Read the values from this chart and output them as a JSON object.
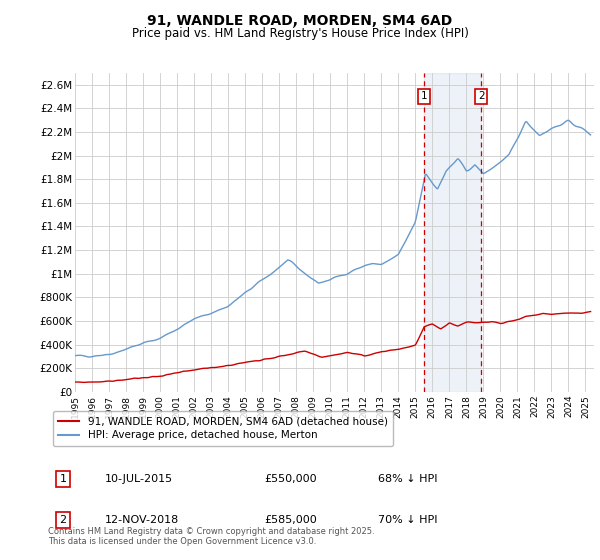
{
  "title": "91, WANDLE ROAD, MORDEN, SM4 6AD",
  "subtitle": "Price paid vs. HM Land Registry's House Price Index (HPI)",
  "ylabel_ticks": [
    "£0",
    "£200K",
    "£400K",
    "£600K",
    "£800K",
    "£1M",
    "£1.2M",
    "£1.4M",
    "£1.6M",
    "£1.8M",
    "£2M",
    "£2.2M",
    "£2.4M",
    "£2.6M"
  ],
  "ytick_values": [
    0,
    200000,
    400000,
    600000,
    800000,
    1000000,
    1200000,
    1400000,
    1600000,
    1800000,
    2000000,
    2200000,
    2400000,
    2600000
  ],
  "ylim": [
    0,
    2700000
  ],
  "xlim_start": 1995,
  "xlim_end": 2025.5,
  "xticks": [
    1995,
    1996,
    1997,
    1998,
    1999,
    2000,
    2001,
    2002,
    2003,
    2004,
    2005,
    2006,
    2007,
    2008,
    2009,
    2010,
    2011,
    2012,
    2013,
    2014,
    2015,
    2016,
    2017,
    2018,
    2019,
    2020,
    2021,
    2022,
    2023,
    2024,
    2025
  ],
  "legend_label_red": "91, WANDLE ROAD, MORDEN, SM4 6AD (detached house)",
  "legend_label_blue": "HPI: Average price, detached house, Merton",
  "red_color": "#cc0000",
  "blue_color": "#6699cc",
  "transaction1_x": 2015.52,
  "transaction2_x": 2018.87,
  "transaction1_label": "1",
  "transaction2_label": "2",
  "table_data": [
    [
      "1",
      "10-JUL-2015",
      "£550,000",
      "68% ↓ HPI"
    ],
    [
      "2",
      "12-NOV-2018",
      "£585,000",
      "70% ↓ HPI"
    ]
  ],
  "footnote": "Contains HM Land Registry data © Crown copyright and database right 2025.\nThis data is licensed under the Open Government Licence v3.0.",
  "background_color": "#ffffff",
  "grid_color": "#cccccc",
  "hpi_seed": 42,
  "red_seed": 99,
  "hpi_noise_scale": 18000,
  "red_noise_scale": 6000
}
